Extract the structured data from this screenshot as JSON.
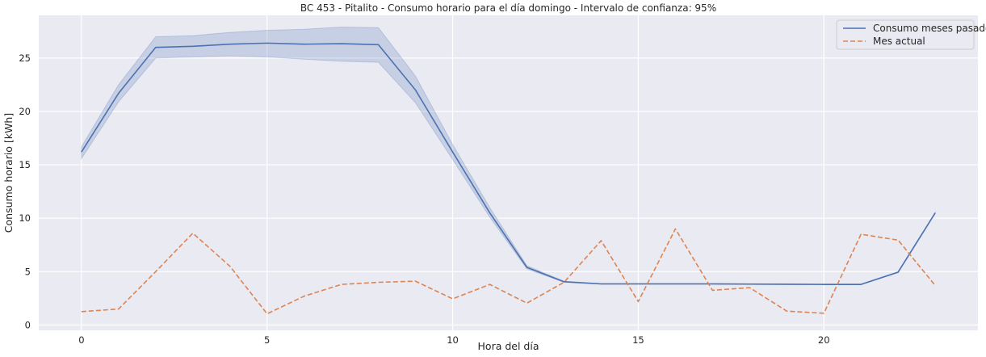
{
  "chart_data": {
    "type": "line",
    "title": "BC 453 - Pitalito - Consumo horario para el día domingo - Intervalo de confianza: 95%",
    "xlabel": "Hora del día",
    "ylabel": "Consumo horario [kWh]",
    "x": [
      0,
      1,
      2,
      3,
      4,
      5,
      6,
      7,
      8,
      9,
      10,
      11,
      12,
      13,
      14,
      15,
      16,
      17,
      18,
      19,
      20,
      21,
      22,
      23
    ],
    "xlim": [
      -1.15,
      24.15
    ],
    "ylim": [
      -0.5,
      29.0
    ],
    "xticks": [
      0,
      5,
      10,
      15,
      20
    ],
    "yticks": [
      0,
      5,
      10,
      15,
      20,
      25
    ],
    "grid": true,
    "legend_position": "top-right",
    "series": [
      {
        "name": "Consumo meses pasados",
        "color": "#4c72b0",
        "style": "solid",
        "values": [
          16.2,
          21.7,
          26.0,
          26.1,
          26.3,
          26.4,
          26.3,
          26.35,
          26.25,
          22.0,
          16.2,
          10.5,
          5.4,
          4.05,
          3.85,
          3.85,
          3.85,
          3.85,
          3.83,
          3.82,
          3.8,
          3.8,
          4.95,
          10.5
        ],
        "ci_lower": [
          15.6,
          20.9,
          25.0,
          25.1,
          25.2,
          25.1,
          24.9,
          24.7,
          24.6,
          20.8,
          15.5,
          10.1,
          5.25,
          4.0,
          3.82,
          3.82,
          3.82,
          3.82,
          3.8,
          3.79,
          3.77,
          3.77,
          4.9,
          10.45
        ],
        "ci_upper": [
          16.7,
          22.5,
          27.0,
          27.1,
          27.4,
          27.6,
          27.7,
          27.9,
          27.85,
          23.3,
          16.9,
          11.0,
          5.55,
          4.1,
          3.88,
          3.88,
          3.88,
          3.88,
          3.86,
          3.85,
          3.83,
          3.83,
          5.0,
          10.55
        ]
      },
      {
        "name": "Mes actual",
        "color": "#dd8452",
        "style": "dashed",
        "values": [
          1.25,
          1.5,
          5.0,
          8.6,
          5.5,
          1.05,
          2.7,
          3.8,
          4.0,
          4.1,
          2.45,
          3.8,
          2.05,
          4.0,
          7.9,
          2.2,
          9.0,
          3.25,
          3.5,
          1.3,
          1.1,
          8.5,
          7.95,
          3.7
        ]
      }
    ]
  }
}
